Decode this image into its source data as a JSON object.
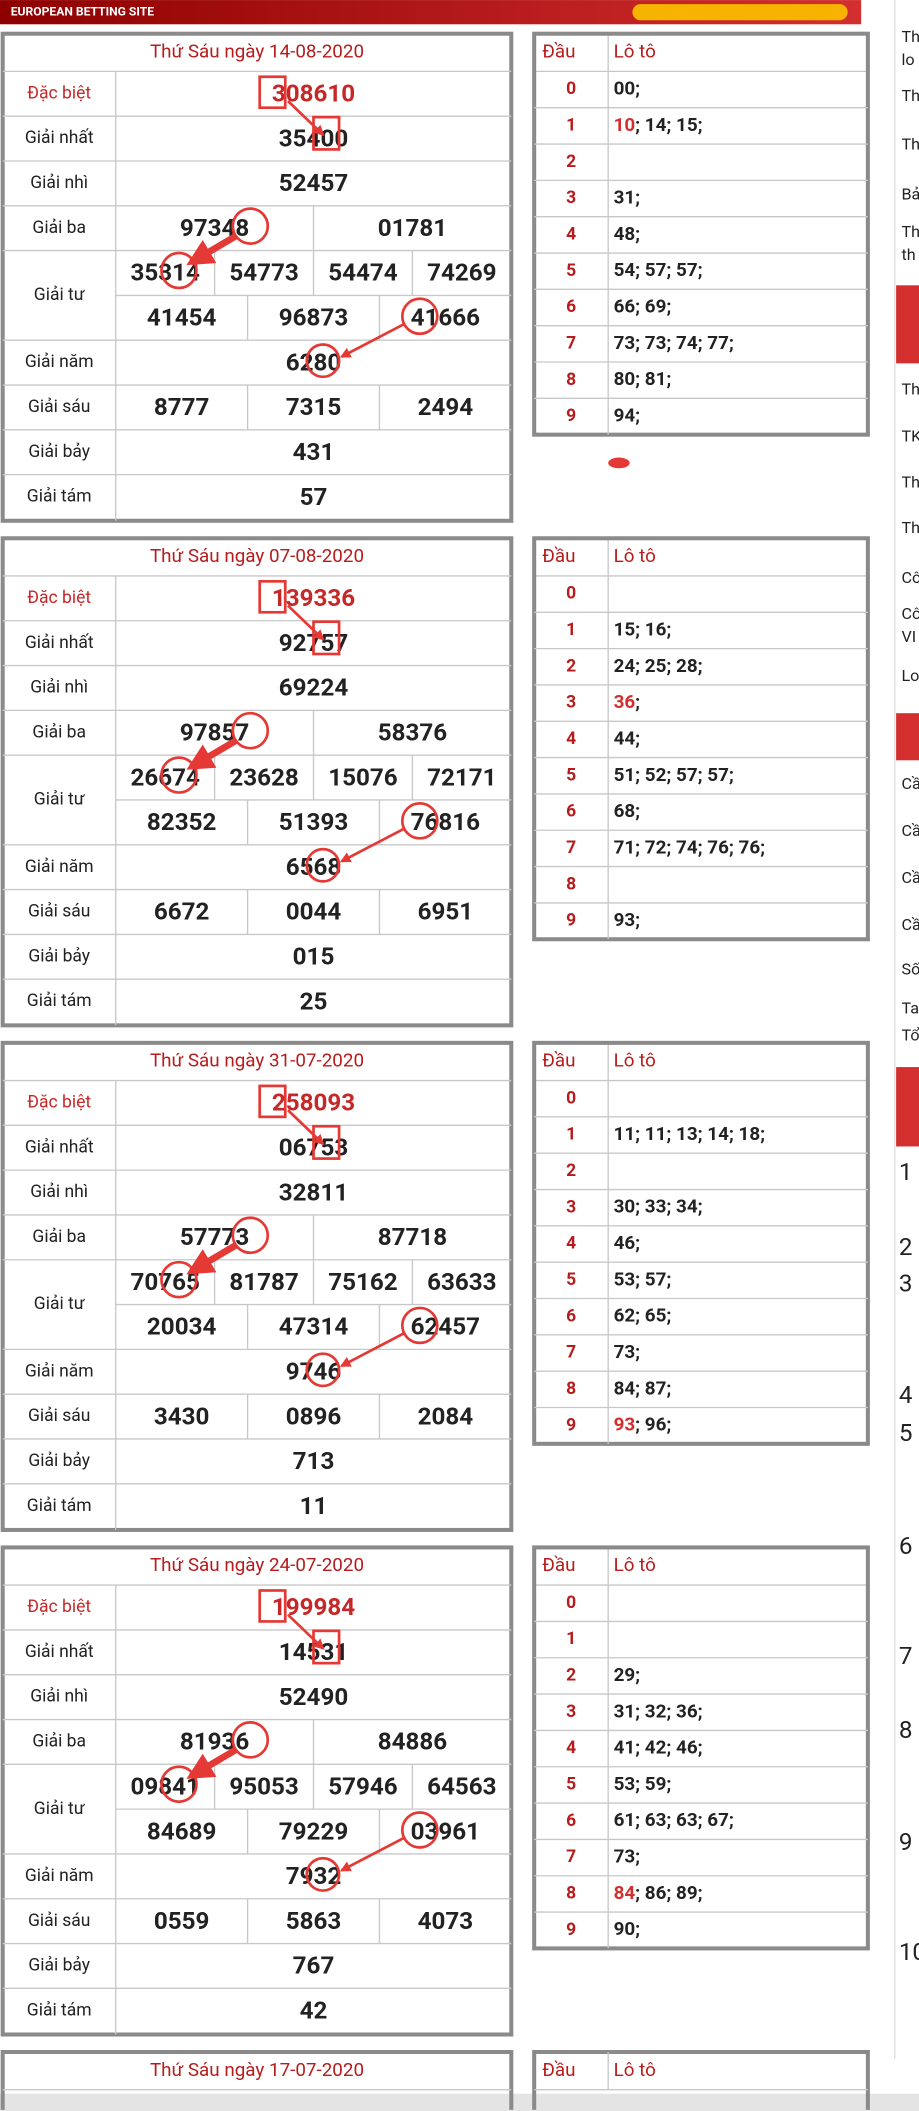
{
  "banner": "EUROPEAN BETTING SITE",
  "draws": [
    {
      "title": "Thứ Sáu ngày 14-08-2020",
      "head_label": "Đầu",
      "loto_label": "Lô tô",
      "prizes": [
        {
          "label": "Đặc biệt",
          "values": [
            "308610"
          ]
        },
        {
          "label": "Giải nhất",
          "values": [
            "35400"
          ]
        },
        {
          "label": "Giải nhì",
          "values": [
            "52457"
          ]
        },
        {
          "label": "Giải ba",
          "values": [
            "97348",
            "01781"
          ]
        },
        {
          "label": "Giải tư",
          "values": [
            "35314",
            "54773",
            "54474",
            "74269",
            "41454",
            "96873",
            "41666"
          ]
        },
        {
          "label": "Giải năm",
          "values": [
            "6280"
          ]
        },
        {
          "label": "Giải sáu",
          "values": [
            "8777",
            "7315",
            "2494"
          ]
        },
        {
          "label": "Giải bảy",
          "values": [
            "431"
          ]
        },
        {
          "label": "Giải tám",
          "values": [
            "57"
          ]
        }
      ],
      "loto": [
        {
          "head": "0",
          "items": [
            "00;"
          ]
        },
        {
          "head": "1",
          "items": [
            {
              "text": "10",
              "color": "#d32f2f"
            },
            "; 14; 15;"
          ]
        },
        {
          "head": "2",
          "items": []
        },
        {
          "head": "3",
          "items": [
            "31;"
          ]
        },
        {
          "head": "4",
          "items": [
            "48;"
          ]
        },
        {
          "head": "5",
          "items": [
            "54; 57; 57;"
          ]
        },
        {
          "head": "6",
          "items": [
            "66; 69;"
          ]
        },
        {
          "head": "7",
          "items": [
            "73; 73; 74; 77;"
          ]
        },
        {
          "head": "8",
          "items": [
            "80; 81;"
          ]
        },
        {
          "head": "9",
          "items": [
            "94;"
          ]
        }
      ]
    },
    {
      "title": "Thứ Sáu ngày 07-08-2020",
      "head_label": "Đầu",
      "loto_label": "Lô tô",
      "prizes": [
        {
          "label": "Đặc biệt",
          "values": [
            "139336"
          ]
        },
        {
          "label": "Giải nhất",
          "values": [
            "92757"
          ]
        },
        {
          "label": "Giải nhì",
          "values": [
            "69224"
          ]
        },
        {
          "label": "Giải ba",
          "values": [
            "97857",
            "58376"
          ]
        },
        {
          "label": "Giải tư",
          "values": [
            "26674",
            "23628",
            "15076",
            "72171",
            "82352",
            "51393",
            "76816"
          ]
        },
        {
          "label": "Giải năm",
          "values": [
            "6568"
          ]
        },
        {
          "label": "Giải sáu",
          "values": [
            "6672",
            "0044",
            "6951"
          ]
        },
        {
          "label": "Giải bảy",
          "values": [
            "015"
          ]
        },
        {
          "label": "Giải tám",
          "values": [
            "25"
          ]
        }
      ],
      "loto": [
        {
          "head": "0",
          "items": []
        },
        {
          "head": "1",
          "items": [
            "15; 16;"
          ]
        },
        {
          "head": "2",
          "items": [
            "24; 25; 28;"
          ]
        },
        {
          "head": "3",
          "items": [
            {
              "text": "36",
              "color": "#d32f2f"
            },
            ";"
          ]
        },
        {
          "head": "4",
          "items": [
            "44;"
          ]
        },
        {
          "head": "5",
          "items": [
            "51; 52; 57; 57;"
          ]
        },
        {
          "head": "6",
          "items": [
            "68;"
          ]
        },
        {
          "head": "7",
          "items": [
            "71; 72; 74; 76; 76;"
          ]
        },
        {
          "head": "8",
          "items": []
        },
        {
          "head": "9",
          "items": [
            "93;"
          ]
        }
      ]
    },
    {
      "title": "Thứ Sáu ngày 31-07-2020",
      "head_label": "Đầu",
      "loto_label": "Lô tô",
      "prizes": [
        {
          "label": "Đặc biệt",
          "values": [
            "258093"
          ]
        },
        {
          "label": "Giải nhất",
          "values": [
            "06753"
          ]
        },
        {
          "label": "Giải nhì",
          "values": [
            "32811"
          ]
        },
        {
          "label": "Giải ba",
          "values": [
            "57773",
            "87718"
          ]
        },
        {
          "label": "Giải tư",
          "values": [
            "70765",
            "81787",
            "75162",
            "63633",
            "20034",
            "47314",
            "62457"
          ]
        },
        {
          "label": "Giải năm",
          "values": [
            "9746"
          ]
        },
        {
          "label": "Giải sáu",
          "values": [
            "3430",
            "0896",
            "2084"
          ]
        },
        {
          "label": "Giải bảy",
          "values": [
            "713"
          ]
        },
        {
          "label": "Giải tám",
          "values": [
            "11"
          ]
        }
      ],
      "loto": [
        {
          "head": "0",
          "items": []
        },
        {
          "head": "1",
          "items": [
            "11; 11; 13; 14; 18;"
          ]
        },
        {
          "head": "2",
          "items": []
        },
        {
          "head": "3",
          "items": [
            "30; 33; 34;"
          ]
        },
        {
          "head": "4",
          "items": [
            "46;"
          ]
        },
        {
          "head": "5",
          "items": [
            "53; 57;"
          ]
        },
        {
          "head": "6",
          "items": [
            "62; 65;"
          ]
        },
        {
          "head": "7",
          "items": [
            "73;"
          ]
        },
        {
          "head": "8",
          "items": [
            "84; 87;"
          ]
        },
        {
          "head": "9",
          "items": [
            {
              "text": "93",
              "color": "#d32f2f"
            },
            "; 96;"
          ]
        }
      ]
    },
    {
      "title": "Thứ Sáu ngày 24-07-2020",
      "head_label": "Đầu",
      "loto_label": "Lô tô",
      "prizes": [
        {
          "label": "Đặc biệt",
          "values": [
            "199984"
          ]
        },
        {
          "label": "Giải nhất",
          "values": [
            "14531"
          ]
        },
        {
          "label": "Giải nhì",
          "values": [
            "52490"
          ]
        },
        {
          "label": "Giải ba",
          "values": [
            "81936",
            "84886"
          ]
        },
        {
          "label": "Giải tư",
          "values": [
            "09841",
            "95053",
            "57946",
            "64563",
            "84689",
            "79229",
            "03961"
          ]
        },
        {
          "label": "Giải năm",
          "values": [
            "7932"
          ]
        },
        {
          "label": "Giải sáu",
          "values": [
            "0559",
            "5863",
            "4073"
          ]
        },
        {
          "label": "Giải bảy",
          "values": [
            "767"
          ]
        },
        {
          "label": "Giải tám",
          "values": [
            "42"
          ]
        }
      ],
      "loto": [
        {
          "head": "0",
          "items": []
        },
        {
          "head": "1",
          "items": []
        },
        {
          "head": "2",
          "items": [
            "29;"
          ]
        },
        {
          "head": "3",
          "items": [
            "31; 32; 36;"
          ]
        },
        {
          "head": "4",
          "items": [
            "41; 42; 46;"
          ]
        },
        {
          "head": "5",
          "items": [
            "53; 59;"
          ]
        },
        {
          "head": "6",
          "items": [
            "61; 63; 63; 67;"
          ]
        },
        {
          "head": "7",
          "items": [
            "73;"
          ]
        },
        {
          "head": "8",
          "items": [
            {
              "text": "84",
              "color": "#d32f2f"
            },
            "; 86; 89;"
          ]
        },
        {
          "head": "9",
          "items": [
            "90;"
          ]
        }
      ]
    }
  ],
  "partial": {
    "title": "Thứ Sáu ngày 17-07-2020",
    "head_label": "Đầu",
    "loto_label": "Lô tô"
  },
  "sidebar": [
    "Th",
    "lo",
    "Th",
    "Th",
    "Bả",
    "Th",
    "th",
    "Th",
    "TK",
    "Th",
    "Th",
    "Cô",
    "Cô",
    "VI",
    "Lo",
    "Cầ",
    "Cầ",
    "Cầ",
    "Cầ",
    "Số",
    "Ta",
    "Tổ",
    "1",
    "2",
    "3",
    "4",
    "5",
    "6",
    "7",
    "8",
    "9",
    "10"
  ]
}
